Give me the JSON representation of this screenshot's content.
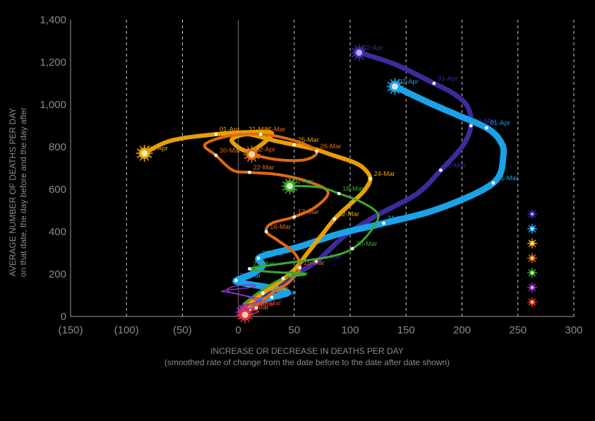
{
  "chart_data": {
    "type": "line",
    "xlabel": "INCREASE OR DECREASE IN DEATHS PER DAY",
    "xlabel_sub": "(smoothed rate of change from the date before to the date after date shown)",
    "ylabel": "AVERAGE NUMBER OF DEATHS PER DAY",
    "ylabel_sub": "on that date, the day before and the day after",
    "xlim": [
      -150,
      300
    ],
    "ylim": [
      0,
      1400
    ],
    "x_ticks": [
      -150,
      -100,
      -50,
      0,
      50,
      100,
      150,
      200,
      250,
      300
    ],
    "x_tick_labels": [
      "(150)",
      "(100)",
      "(50)",
      "0",
      "50",
      "100",
      "150",
      "200",
      "250",
      "300"
    ],
    "y_ticks": [
      0,
      200,
      400,
      600,
      800,
      1000,
      1200,
      1400
    ],
    "y_tick_labels": [
      "0",
      "200",
      "400",
      "600",
      "800",
      "1,000",
      "1,200",
      "1,400"
    ],
    "grid": "vertical dashed",
    "legend_position": "right",
    "series": [
      {
        "color": "#3f2a9c",
        "end_color": "#b8a8ff",
        "width": 7,
        "x": [
          5,
          14,
          27,
          45,
          70,
          95,
          125,
          160,
          181,
          200,
          208,
          205,
          193,
          175,
          140,
          108
        ],
        "y": [
          50,
          75,
          110,
          180,
          260,
          380,
          480,
          580,
          690,
          800,
          900,
          990,
          1050,
          1100,
          1190,
          1245
        ],
        "labels": [
          {
            "i": 4,
            "text": "25-Mar"
          },
          {
            "i": 8,
            "text": "30-Mar"
          },
          {
            "i": 10,
            "text": "31-Mar"
          },
          {
            "i": 13,
            "text": "01-Apr"
          },
          {
            "i": 15,
            "text": "02-Apr"
          }
        ]
      },
      {
        "color": "#1aa3e6",
        "end_color": "#cfeeff",
        "width": 9,
        "x": [
          5,
          15,
          30,
          44,
          38,
          24,
          12,
          2,
          -2,
          12,
          22,
          18,
          32,
          55,
          90,
          130,
          180,
          228,
          237,
          234,
          222,
          196,
          170,
          140
        ],
        "y": [
          30,
          60,
          90,
          110,
          125,
          140,
          150,
          160,
          170,
          200,
          240,
          275,
          300,
          330,
          390,
          440,
          510,
          630,
          760,
          830,
          890,
          950,
          1010,
          1085
        ],
        "labels": [
          {
            "i": 2,
            "text": "18-Mar"
          },
          {
            "i": 8,
            "text": "21-Mar"
          },
          {
            "i": 11,
            "text": "27-Mar"
          },
          {
            "i": 15,
            "text": "31-Mar"
          },
          {
            "i": 17,
            "text": "31-Mar"
          },
          {
            "i": 20,
            "text": "01-Apr"
          },
          {
            "i": 23,
            "text": "02-Apr"
          }
        ]
      },
      {
        "color": "#e8a000",
        "end_color": "#fff0b0",
        "width": 6,
        "x": [
          2,
          10,
          22,
          36,
          50,
          62,
          74,
          86,
          100,
          112,
          118,
          112,
          102,
          85,
          68,
          50,
          32,
          18,
          6,
          -6,
          10,
          30,
          15,
          -20,
          -60,
          -84
        ],
        "y": [
          20,
          60,
          110,
          160,
          220,
          300,
          380,
          460,
          530,
          590,
          650,
          700,
          730,
          760,
          790,
          810,
          830,
          850,
          860,
          830,
          780,
          860,
          870,
          860,
          830,
          770
        ],
        "labels": [
          {
            "i": 2,
            "text": "19-Mar"
          },
          {
            "i": 7,
            "text": "22-Mar"
          },
          {
            "i": 10,
            "text": "24-Mar"
          },
          {
            "i": 15,
            "text": "25-Mar"
          },
          {
            "i": 18,
            "text": "31-Mar"
          },
          {
            "i": 23,
            "text": "01-Apr"
          },
          {
            "i": 25,
            "text": "02-Apr"
          }
        ]
      },
      {
        "color": "#e06a10",
        "end_color": "#ffd9b8",
        "width": 4,
        "x": [
          5,
          18,
          30,
          45,
          55,
          50,
          35,
          25,
          30,
          50,
          70,
          80,
          60,
          35,
          10,
          -5,
          -20,
          -30,
          -10,
          20,
          50,
          70,
          60,
          35,
          12
        ],
        "y": [
          20,
          60,
          110,
          160,
          230,
          300,
          360,
          400,
          440,
          470,
          520,
          590,
          640,
          670,
          680,
          690,
          760,
          810,
          850,
          860,
          830,
          780,
          740,
          740,
          765
        ],
        "labels": [
          {
            "i": 0,
            "text": "12-Mar"
          },
          {
            "i": 4,
            "text": "15-Mar"
          },
          {
            "i": 7,
            "text": "16-Mar"
          },
          {
            "i": 9,
            "text": "17-Mar"
          },
          {
            "i": 14,
            "text": "22-Mar"
          },
          {
            "i": 16,
            "text": "30-Mar"
          },
          {
            "i": 19,
            "text": "27-Mar"
          },
          {
            "i": 21,
            "text": "26-Mar"
          },
          {
            "i": 24,
            "text": "02-Apr"
          }
        ]
      },
      {
        "color": "#3fa832",
        "end_color": "#c8ffb8",
        "width": 3,
        "x": [
          5,
          20,
          40,
          60,
          30,
          10,
          40,
          80,
          102,
          118,
          125,
          110,
          90,
          80,
          72,
          58,
          46
        ],
        "y": [
          60,
          120,
          180,
          200,
          210,
          225,
          250,
          280,
          320,
          400,
          480,
          540,
          580,
          600,
          610,
          615,
          615
        ],
        "labels": [
          {
            "i": 2,
            "text": "26-Mar"
          },
          {
            "i": 5,
            "text": "28-Mar"
          },
          {
            "i": 8,
            "text": "30-Mar"
          },
          {
            "i": 12,
            "text": "18-Mar"
          },
          {
            "i": 16,
            "text": "02-Apr"
          }
        ]
      },
      {
        "color": "#8f2fc0",
        "end_color": "#e6b8ff",
        "width": 1.5,
        "x": [
          0,
          10,
          20,
          10,
          -5,
          -15,
          0,
          15,
          10,
          -5,
          -10,
          5,
          20,
          12,
          0,
          5
        ],
        "y": [
          0,
          30,
          60,
          90,
          110,
          120,
          130,
          140,
          150,
          140,
          120,
          100,
          80,
          60,
          40,
          20
        ],
        "labels": []
      },
      {
        "color": "#e0352b",
        "end_color": "#ffc8c0",
        "width": 1.5,
        "x": [
          0,
          8,
          16,
          12,
          4,
          10,
          18,
          14,
          6
        ],
        "y": [
          0,
          20,
          40,
          60,
          50,
          35,
          25,
          15,
          8
        ],
        "labels": [
          {
            "i": 2,
            "text": "19-Mar"
          },
          {
            "i": 5,
            "text": "06-Mar"
          }
        ]
      }
    ]
  }
}
